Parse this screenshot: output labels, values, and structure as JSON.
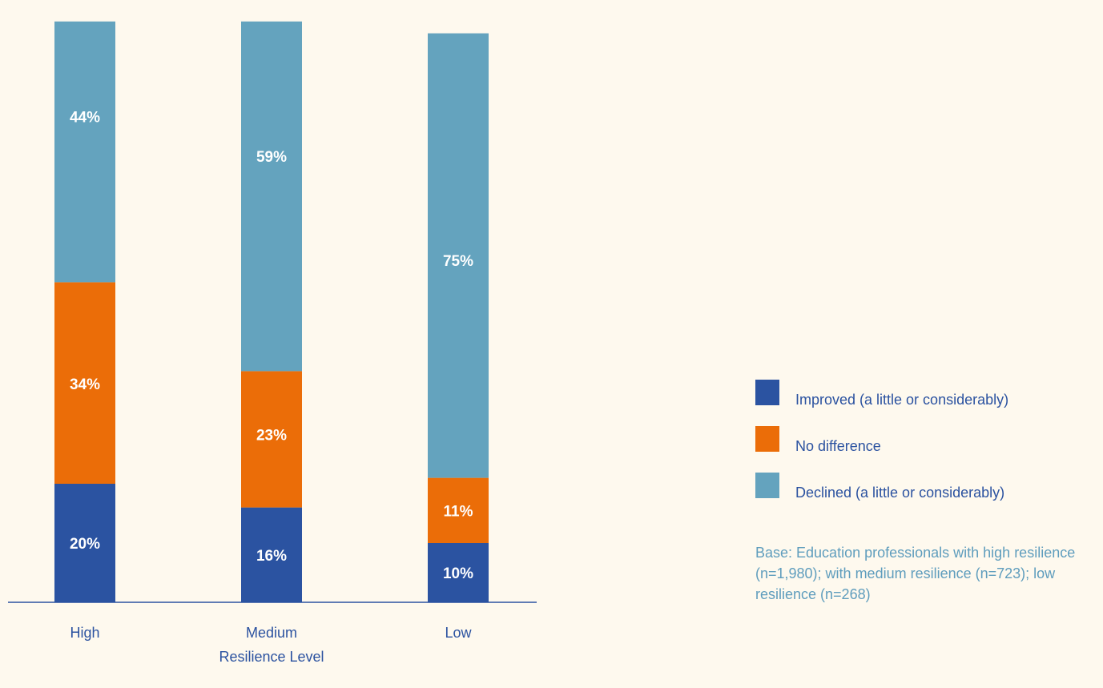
{
  "chart_data": {
    "type": "bar",
    "stacked": true,
    "orientation": "vertical",
    "xlabel": "Resilience Level",
    "ylabel": "",
    "ylim": [
      0,
      100
    ],
    "categories": [
      "High",
      "Medium",
      "Low"
    ],
    "series": [
      {
        "name": "Improved (a little or considerably)",
        "values": [
          20,
          16,
          10
        ],
        "labels": [
          "20%",
          "16%",
          "10%"
        ],
        "color": "#2b53a1"
      },
      {
        "name": "No difference",
        "values": [
          34,
          23,
          11
        ],
        "labels": [
          "34%",
          "23%",
          "11%"
        ],
        "color": "#eb6d08"
      },
      {
        "name": "Declined (a little or considerably)",
        "values": [
          44,
          59,
          75
        ],
        "labels": [
          "44%",
          "59%",
          "75%"
        ],
        "color": "#64a3be"
      }
    ],
    "grid": false,
    "legend_position": "right"
  },
  "colors": {
    "background": "#fef9ee",
    "axis": "#2b52a0",
    "text": "#2b52a0",
    "note_text": "#5f9dbd",
    "bar_label": "#ffffff"
  },
  "base_note": "Base: Education professionals with high resilience (n=1,980); with medium resilience (n=723); low resilience (n=268)"
}
